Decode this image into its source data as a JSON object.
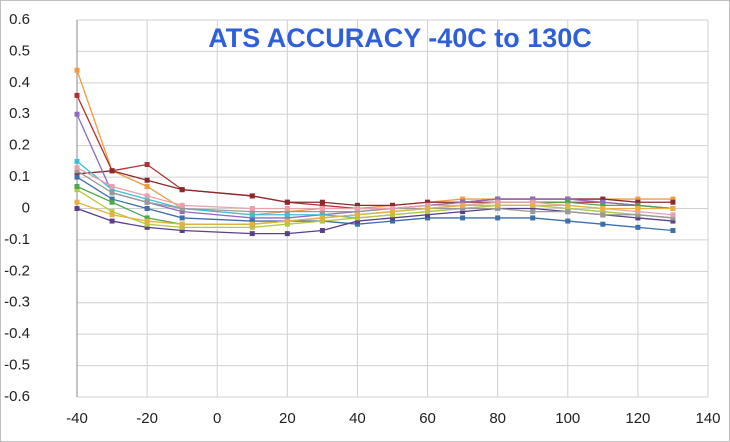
{
  "chart_data": {
    "type": "line",
    "title": "ATS ACCURACY -40C to 130C",
    "x": [
      -40,
      -30,
      -20,
      -10,
      10,
      20,
      30,
      40,
      50,
      60,
      70,
      80,
      90,
      100,
      110,
      120,
      130
    ],
    "xlim": [
      -40,
      140
    ],
    "xticks": [
      -40,
      -20,
      0,
      20,
      40,
      60,
      80,
      100,
      120,
      140
    ],
    "ylim": [
      -0.6,
      0.6
    ],
    "yticks": [
      0.6,
      0.5,
      0.4,
      0.3,
      0.2,
      0.1,
      0,
      -0.1,
      -0.2,
      -0.3,
      -0.4,
      -0.5,
      -0.6
    ],
    "grid": true,
    "series": [
      {
        "color": "#f59a3c",
        "values": [
          0.44,
          0.12,
          0.07,
          0.0,
          -0.02,
          -0.01,
          0.0,
          0.0,
          0.01,
          0.02,
          0.03,
          0.03,
          0.03,
          0.03,
          0.03,
          0.03,
          0.03
        ]
      },
      {
        "color": "#b03030",
        "values": [
          0.36,
          0.12,
          0.14,
          0.06,
          0.04,
          0.02,
          0.01,
          0.0,
          0.0,
          0.01,
          0.02,
          0.02,
          0.02,
          0.02,
          0.02,
          0.01,
          0.0
        ]
      },
      {
        "color": "#8b2a2a",
        "values": [
          0.11,
          0.12,
          0.09,
          0.06,
          0.04,
          0.02,
          0.02,
          0.01,
          0.01,
          0.02,
          0.02,
          0.03,
          0.03,
          0.03,
          0.03,
          0.02,
          0.02
        ]
      },
      {
        "color": "#8e6cc0",
        "values": [
          0.3,
          0.05,
          0.02,
          -0.01,
          -0.03,
          -0.03,
          -0.02,
          -0.01,
          0.0,
          0.01,
          0.02,
          0.03,
          0.03,
          0.03,
          0.02,
          0.01,
          0.0
        ]
      },
      {
        "color": "#3cc0d8",
        "values": [
          0.15,
          0.06,
          0.03,
          0.0,
          -0.02,
          -0.02,
          -0.02,
          -0.03,
          -0.02,
          -0.01,
          0.0,
          0.01,
          0.01,
          0.0,
          -0.01,
          -0.02,
          -0.03
        ]
      },
      {
        "color": "#3d6fa8",
        "values": [
          0.1,
          0.03,
          0.0,
          -0.03,
          -0.04,
          -0.04,
          -0.04,
          -0.05,
          -0.04,
          -0.03,
          -0.03,
          -0.03,
          -0.03,
          -0.04,
          -0.05,
          -0.06,
          -0.07
        ]
      },
      {
        "color": "#5a3f8a",
        "values": [
          0.0,
          -0.04,
          -0.06,
          -0.07,
          -0.08,
          -0.08,
          -0.07,
          -0.04,
          -0.03,
          -0.02,
          -0.01,
          0.0,
          0.0,
          -0.01,
          -0.02,
          -0.03,
          -0.04
        ]
      },
      {
        "color": "#b8c840",
        "values": [
          0.06,
          -0.01,
          -0.05,
          -0.06,
          -0.06,
          -0.05,
          -0.04,
          -0.03,
          -0.02,
          -0.01,
          0.0,
          0.01,
          0.01,
          0.0,
          -0.01,
          -0.02,
          -0.03
        ]
      },
      {
        "color": "#4aa84a",
        "values": [
          0.07,
          0.02,
          -0.03,
          -0.05,
          -0.05,
          -0.04,
          -0.03,
          -0.02,
          -0.01,
          0.0,
          0.01,
          0.02,
          0.02,
          0.02,
          0.01,
          0.01,
          0.0
        ]
      },
      {
        "color": "#999999",
        "values": [
          0.12,
          0.05,
          0.02,
          0.0,
          -0.01,
          -0.01,
          -0.01,
          -0.01,
          0.0,
          0.0,
          0.0,
          0.0,
          -0.01,
          -0.01,
          -0.02,
          -0.02,
          -0.03
        ]
      },
      {
        "color": "#e8a0b0",
        "values": [
          0.13,
          0.07,
          0.04,
          0.01,
          0.0,
          0.0,
          0.0,
          0.0,
          0.0,
          0.01,
          0.01,
          0.02,
          0.02,
          0.01,
          0.0,
          -0.01,
          -0.02
        ]
      },
      {
        "color": "#e8b040",
        "values": [
          0.02,
          -0.02,
          -0.04,
          -0.05,
          -0.05,
          -0.04,
          -0.03,
          -0.02,
          -0.01,
          0.0,
          0.01,
          0.01,
          0.01,
          0.01,
          0.0,
          0.0,
          0.0
        ]
      }
    ]
  }
}
